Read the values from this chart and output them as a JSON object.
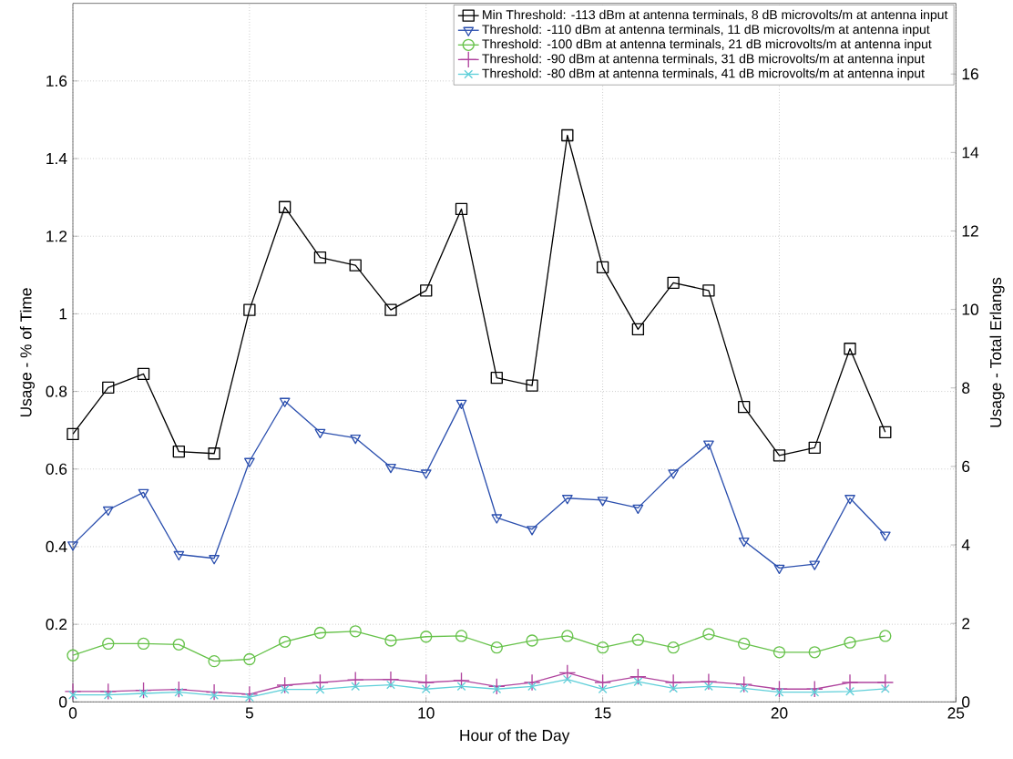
{
  "chart_data": {
    "type": "line",
    "xlabel": "Hour of the Day",
    "ylabel": "Usage - % of Time",
    "y2label": "Usage - Total Erlangs",
    "x": [
      0,
      1,
      2,
      3,
      4,
      5,
      6,
      7,
      8,
      9,
      10,
      11,
      12,
      13,
      14,
      15,
      16,
      17,
      18,
      19,
      20,
      21,
      22,
      23
    ],
    "series": [
      {
        "name": "Min Threshold: -113 dBm at antenna terminals, 8 dB microvolts/m at antenna input",
        "color": "#000000",
        "marker": "square",
        "values": [
          0.69,
          0.81,
          0.845,
          0.645,
          0.64,
          1.01,
          1.275,
          1.145,
          1.125,
          1.01,
          1.06,
          1.27,
          0.835,
          0.815,
          1.46,
          1.12,
          0.96,
          1.08,
          1.06,
          0.76,
          0.635,
          0.655,
          0.91,
          0.695
        ]
      },
      {
        "name": "Threshold: -110 dBm at antenna terminals, 11 dB microvolts/m at antenna input",
        "color": "#2b4fae",
        "marker": "triangle",
        "values": [
          0.405,
          0.495,
          0.54,
          0.38,
          0.37,
          0.62,
          0.775,
          0.695,
          0.68,
          0.605,
          0.59,
          0.77,
          0.475,
          0.445,
          0.525,
          0.52,
          0.5,
          0.59,
          0.665,
          0.415,
          0.345,
          0.355,
          0.525,
          0.43
        ]
      },
      {
        "name": "Threshold: -100 dBm at antenna terminals, 21 dB microvolts/m at antenna input",
        "color": "#66c24a",
        "marker": "circle",
        "values": [
          0.12,
          0.15,
          0.15,
          0.148,
          0.105,
          0.11,
          0.155,
          0.178,
          0.182,
          0.158,
          0.168,
          0.17,
          0.14,
          0.158,
          0.17,
          0.14,
          0.16,
          0.14,
          0.175,
          0.15,
          0.128,
          0.128,
          0.153,
          0.17
        ]
      },
      {
        "name": "Threshold: -90 dBm at antenna terminals, 31 dB microvolts/m at antenna input",
        "color": "#b0449e",
        "marker": "plus",
        "values": [
          0.027,
          0.027,
          0.03,
          0.032,
          0.025,
          0.02,
          0.043,
          0.05,
          0.057,
          0.058,
          0.05,
          0.055,
          0.04,
          0.05,
          0.075,
          0.05,
          0.065,
          0.05,
          0.052,
          0.045,
          0.033,
          0.033,
          0.05,
          0.05
        ]
      },
      {
        "name": "Threshold: -80 dBm at antenna terminals, 41 dB microvolts/m at antenna input",
        "color": "#5fcfd9",
        "marker": "cross",
        "values": [
          0.018,
          0.018,
          0.022,
          0.025,
          0.017,
          0.012,
          0.032,
          0.032,
          0.04,
          0.044,
          0.033,
          0.04,
          0.033,
          0.04,
          0.058,
          0.033,
          0.052,
          0.035,
          0.04,
          0.035,
          0.025,
          0.025,
          0.027,
          0.034
        ]
      }
    ],
    "xlim": [
      0,
      25
    ],
    "xticks": [
      0,
      5,
      10,
      15,
      20,
      25
    ],
    "ylim": [
      0,
      1.8
    ],
    "yticks": [
      0,
      0.2,
      0.4,
      0.6,
      0.8,
      1,
      1.2,
      1.4,
      1.6
    ],
    "y2lim": [
      0,
      17.8
    ],
    "y2ticks": [
      0,
      2,
      4,
      6,
      8,
      10,
      12,
      14,
      16
    ],
    "grid": true,
    "legend": "top right",
    "line_style": "solid"
  }
}
